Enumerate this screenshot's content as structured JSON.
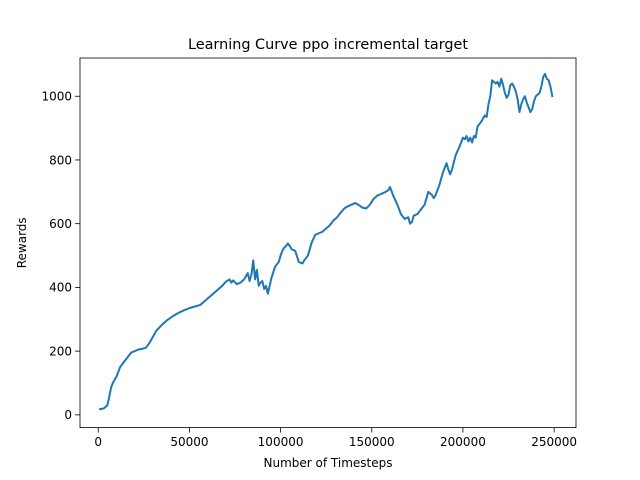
{
  "chart_data": {
    "type": "line",
    "title": "Learning Curve ppo incremental target",
    "xlabel": "Number of Timesteps",
    "ylabel": "Rewards",
    "xlim": [
      -10000,
      262000
    ],
    "ylim": [
      -40,
      1120
    ],
    "xticks": [
      0,
      50000,
      100000,
      150000,
      200000,
      250000
    ],
    "xtick_labels": [
      "0",
      "50000",
      "100000",
      "150000",
      "200000",
      "250000"
    ],
    "yticks": [
      0,
      200,
      400,
      600,
      800,
      1000
    ],
    "ytick_labels": [
      "0",
      "200",
      "400",
      "600",
      "800",
      "1000"
    ],
    "grid": false,
    "series": [
      {
        "color": "#1f77b4",
        "x": [
          1000,
          3000,
          4000,
          5000,
          6000,
          7000,
          8000,
          9000,
          10000,
          11000,
          12000,
          14000,
          16000,
          18000,
          20000,
          22000,
          24000,
          26000,
          28000,
          30000,
          32000,
          35000,
          38000,
          41000,
          44000,
          47000,
          50000,
          53000,
          56000,
          59000,
          62000,
          65000,
          68000,
          70000,
          72000,
          73000,
          74000,
          76000,
          78000,
          80000,
          82000,
          83000,
          84000,
          85000,
          86000,
          87000,
          88000,
          89000,
          90000,
          91000,
          92000,
          93000,
          95000,
          97000,
          99000,
          100000,
          101000,
          102000,
          103000,
          104000,
          105000,
          106000,
          108000,
          110000,
          112000,
          113000,
          115000,
          117000,
          119000,
          121000,
          123000,
          125000,
          127000,
          129000,
          131000,
          133000,
          135000,
          137000,
          139000,
          141000,
          143000,
          145000,
          147000,
          149000,
          151000,
          153000,
          155000,
          157000,
          159000,
          160000,
          161000,
          162000,
          164000,
          166000,
          168000,
          170000,
          171000,
          172000,
          173000,
          175000,
          177000,
          179000,
          181000,
          183000,
          184000,
          185000,
          187000,
          189000,
          191000,
          192000,
          193000,
          194000,
          196000,
          198000,
          200000,
          201000,
          202000,
          203000,
          204000,
          205000,
          206000,
          207000,
          208000,
          210000,
          211000,
          212000,
          213000,
          214000,
          215000,
          216000,
          217000,
          218000,
          219000,
          220000,
          221000,
          222000,
          223000,
          224000,
          225000,
          226000,
          227000,
          228000,
          229000,
          230000,
          231000,
          232000,
          233000,
          234000,
          235000,
          236000,
          237000,
          238000,
          239000,
          240000,
          241000,
          242000,
          243000,
          244000,
          245000,
          246000,
          247000,
          248000,
          249000
        ],
        "y": [
          18,
          20,
          25,
          30,
          55,
          85,
          100,
          110,
          120,
          135,
          150,
          165,
          180,
          195,
          200,
          205,
          207,
          210,
          225,
          245,
          265,
          283,
          298,
          310,
          320,
          328,
          335,
          340,
          345,
          360,
          375,
          390,
          405,
          418,
          425,
          415,
          422,
          410,
          415,
          425,
          445,
          420,
          440,
          485,
          425,
          455,
          405,
          415,
          420,
          395,
          405,
          380,
          430,
          465,
          480,
          500,
          515,
          525,
          530,
          538,
          530,
          520,
          515,
          480,
          475,
          485,
          500,
          540,
          565,
          570,
          575,
          585,
          595,
          610,
          620,
          635,
          648,
          655,
          660,
          665,
          658,
          650,
          648,
          660,
          678,
          688,
          693,
          698,
          705,
          715,
          700,
          685,
          660,
          630,
          615,
          620,
          600,
          605,
          625,
          630,
          645,
          660,
          700,
          690,
          680,
          690,
          720,
          760,
          790,
          770,
          755,
          770,
          815,
          840,
          870,
          865,
          875,
          858,
          870,
          855,
          875,
          870,
          905,
          920,
          930,
          940,
          935,
          975,
          1000,
          1050,
          1045,
          1040,
          1045,
          1030,
          1055,
          1035,
          1010,
          995,
          1005,
          1035,
          1040,
          1030,
          1015,
          990,
          950,
          975,
          990,
          1000,
          980,
          965,
          950,
          960,
          985,
          1000,
          1005,
          1010,
          1030,
          1060,
          1070,
          1055,
          1050,
          1030,
          1000
        ]
      }
    ]
  }
}
